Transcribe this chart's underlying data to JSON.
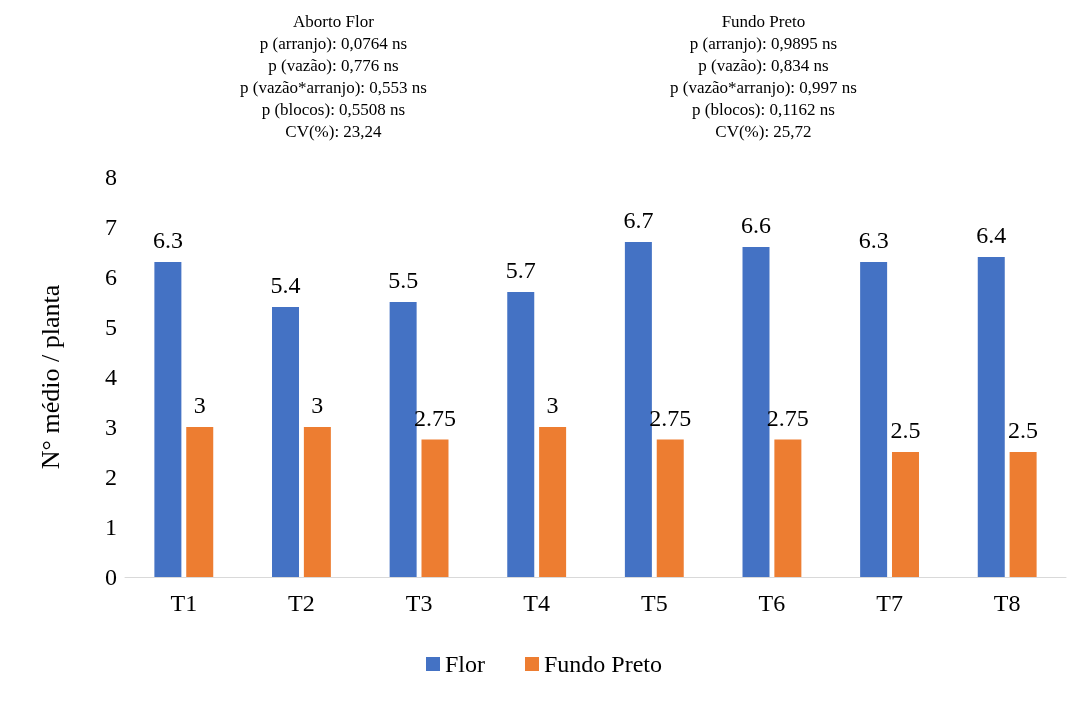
{
  "chart_data": {
    "type": "bar",
    "ylabel": "N° médio / planta",
    "categories": [
      "T1",
      "T2",
      "T3",
      "T4",
      "T5",
      "T6",
      "T7",
      "T8"
    ],
    "series": [
      {
        "name": "Flor",
        "color": "#4472c4",
        "values": [
          6.3,
          5.4,
          5.5,
          5.7,
          6.7,
          6.6,
          6.3,
          6.4
        ]
      },
      {
        "name": "Fundo Preto",
        "color": "#ed7d31",
        "values": [
          3,
          3,
          2.75,
          3,
          2.75,
          2.75,
          2.5,
          2.5
        ]
      }
    ],
    "ylim": [
      0,
      8
    ],
    "yticks": [
      0,
      1,
      2,
      3,
      4,
      5,
      6,
      7,
      8
    ],
    "grid": false,
    "legend": "bottom",
    "data_labels": true,
    "annotations": [
      "Aborto Flor\np (arranjo): 0,0764 ns\np (vazão): 0,776 ns\np (vazão*arranjo): 0,553 ns\np (blocos): 0,5508 ns\nCV(%): 23,24",
      "Fundo Preto\np (arranjo): 0,9895 ns\np (vazão): 0,834 ns\np (vazão*arranjo): 0,997 ns\np (blocos): 0,1162 ns\nCV(%): 25,72"
    ]
  }
}
